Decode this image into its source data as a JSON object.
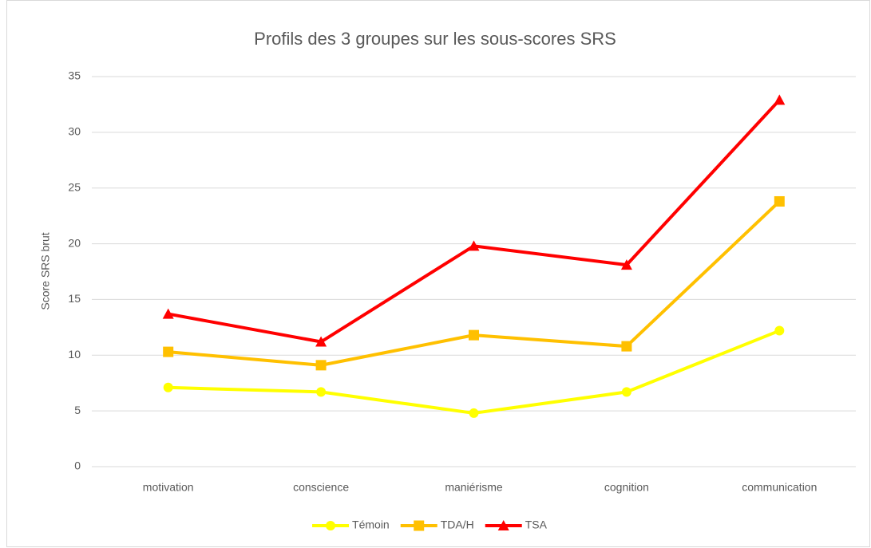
{
  "chart_data": {
    "type": "line",
    "title": "Profils des 3 groupes sur les sous-scores SRS",
    "y_label": "Score SRS brut",
    "categories": [
      "motivation",
      "conscience",
      "maniérisme",
      "cognition",
      "communication"
    ],
    "series": [
      {
        "name": "Témoin",
        "color": "#ffff00",
        "marker": "circle",
        "values": [
          7.1,
          6.7,
          4.8,
          6.7,
          12.2
        ]
      },
      {
        "name": "TDA/H",
        "color": "#ffc000",
        "marker": "square",
        "values": [
          10.3,
          9.1,
          11.8,
          10.8,
          23.8
        ]
      },
      {
        "name": "TSA",
        "color": "#ff0000",
        "marker": "triangle",
        "values": [
          13.7,
          11.2,
          19.8,
          18.1,
          32.9
        ]
      }
    ],
    "ylim": [
      0,
      35
    ],
    "yticks": [
      0,
      5,
      10,
      15,
      20,
      25,
      30,
      35
    ],
    "grid": true,
    "legend": "bottom"
  }
}
